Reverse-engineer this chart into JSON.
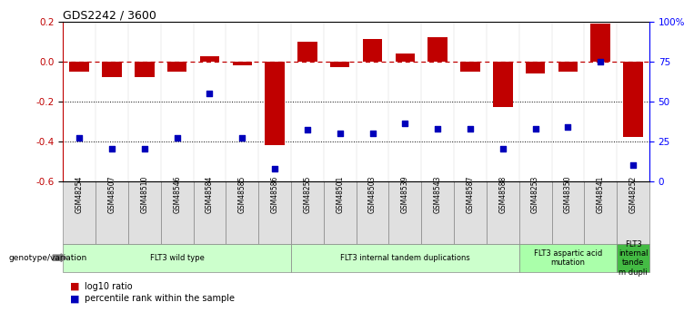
{
  "title": "GDS2242 / 3600",
  "samples": [
    "GSM48254",
    "GSM48507",
    "GSM48510",
    "GSM48546",
    "GSM48584",
    "GSM48585",
    "GSM48586",
    "GSM48255",
    "GSM48501",
    "GSM48503",
    "GSM48539",
    "GSM48543",
    "GSM48587",
    "GSM48588",
    "GSM48253",
    "GSM48350",
    "GSM48541",
    "GSM48252"
  ],
  "log10_ratio": [
    -0.05,
    -0.08,
    -0.08,
    -0.05,
    0.025,
    -0.02,
    -0.42,
    0.1,
    -0.03,
    0.11,
    0.04,
    0.12,
    -0.05,
    -0.23,
    -0.06,
    -0.05,
    0.19,
    -0.38
  ],
  "percentile_rank": [
    27,
    20,
    20,
    27,
    55,
    27,
    8,
    32,
    30,
    30,
    36,
    33,
    33,
    20,
    33,
    34,
    75,
    10
  ],
  "ylim_left": [
    -0.6,
    0.2
  ],
  "ylim_right": [
    0,
    100
  ],
  "yticks_left": [
    -0.6,
    -0.4,
    -0.2,
    0.0,
    0.2
  ],
  "yticks_right": [
    0,
    25,
    50,
    75,
    100
  ],
  "ytick_labels_right": [
    "0",
    "25",
    "50",
    "75",
    "100%"
  ],
  "bar_color": "#C00000",
  "dot_color": "#0000BB",
  "hline_color": "#C00000",
  "dotted_line_color": "#000000",
  "group_list": [
    {
      "label": "FLT3 wild type",
      "start": 0,
      "end": 7,
      "color": "#CCFFCC"
    },
    {
      "label": "FLT3 internal tandem duplications",
      "start": 7,
      "end": 14,
      "color": "#CCFFCC"
    },
    {
      "label": "FLT3 aspartic acid\nmutation",
      "start": 14,
      "end": 17,
      "color": "#AAFFAA"
    },
    {
      "label": "FLT3\ninternal\ntande\nm dupli",
      "start": 17,
      "end": 18,
      "color": "#44BB44"
    }
  ],
  "legend_bar_label": "log10 ratio",
  "legend_dot_label": "percentile rank within the sample",
  "genotype_label": "genotype/variation"
}
